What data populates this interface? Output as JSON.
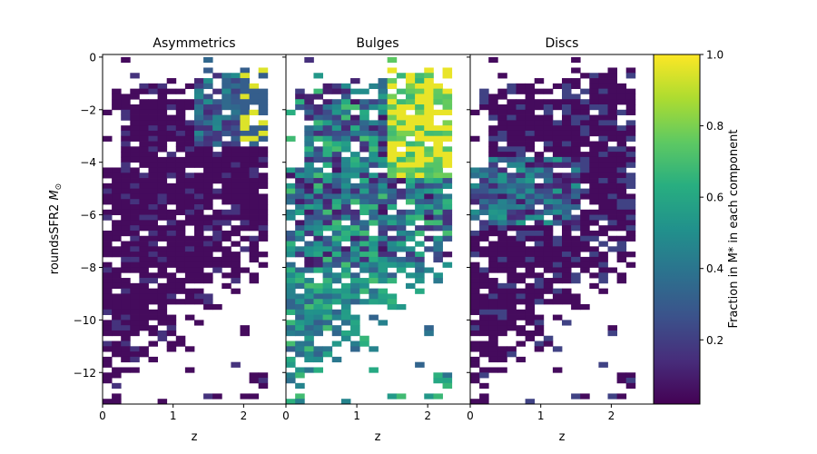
{
  "chart_data": {
    "type": "heatmap",
    "ylabel": "roundsSFR2 M_⊙",
    "ylabel_main": "roundsSFR2 ",
    "ylabel_sym": "M",
    "ylabel_sub": "⊙",
    "xlim": [
      0,
      2.6
    ],
    "ylim": [
      -13.2,
      0.1
    ],
    "xticks": [
      0,
      1,
      2
    ],
    "yticks": [
      0,
      -2,
      -4,
      -6,
      -8,
      -10,
      -12
    ],
    "xtick_labels": [
      "0",
      "1",
      "2"
    ],
    "ytick_labels": [
      "0",
      "−2",
      "−4",
      "−6",
      "−8",
      "−10",
      "−12"
    ],
    "xbin": 0.13,
    "ybin": 0.2,
    "colorbar": {
      "label": "Fraction in M* in each component",
      "range": [
        0.02,
        1.0
      ],
      "ticks": [
        0.2,
        0.4,
        0.6,
        0.8,
        1.0
      ],
      "tick_labels": [
        "0.2",
        "0.4",
        "0.6",
        "0.8",
        "1.0"
      ],
      "colormap": "viridis"
    },
    "panels": [
      {
        "title": "Asymmetrics",
        "xlabel": "z"
      },
      {
        "title": "Bulges",
        "xlabel": "z"
      },
      {
        "title": "Discs",
        "xlabel": "z"
      }
    ]
  }
}
